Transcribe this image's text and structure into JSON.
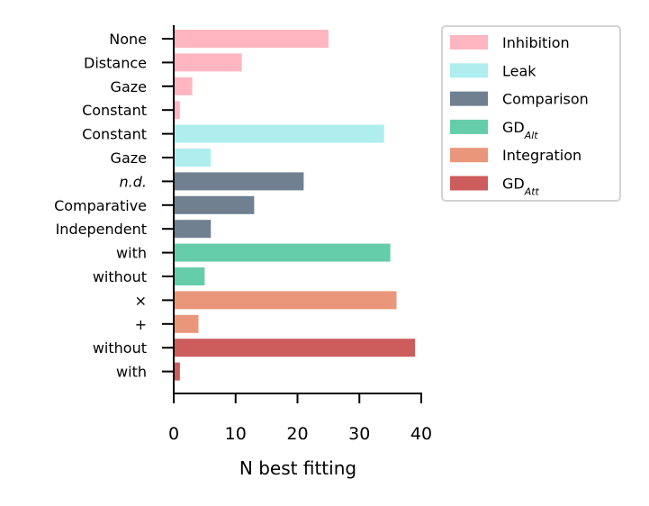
{
  "chart_data": {
    "type": "bar",
    "orientation": "horizontal",
    "categories": [
      "None",
      "Distance",
      "Gaze",
      "Constant",
      "Constant",
      "Gaze",
      "n.d.",
      "Comparative",
      "Independent",
      "with",
      "without",
      "×",
      "+",
      "without",
      "with"
    ],
    "category_italic": [
      false,
      false,
      false,
      false,
      false,
      false,
      true,
      false,
      false,
      false,
      false,
      false,
      false,
      false,
      false
    ],
    "values": [
      25,
      11,
      3,
      1,
      34,
      6,
      21,
      13,
      6,
      35,
      5,
      36,
      4,
      39,
      1
    ],
    "group": [
      0,
      0,
      0,
      0,
      1,
      1,
      2,
      2,
      2,
      3,
      3,
      4,
      4,
      5,
      5
    ],
    "xlabel": "N best fitting",
    "ylabel": "",
    "xlim": [
      0,
      40
    ],
    "xticks": [
      0,
      10,
      20,
      30,
      40
    ],
    "grid": false,
    "legend_position": "top-right, outside plot",
    "legend": [
      {
        "label": "Inhibition",
        "sub": "",
        "color": "#ffb6c1"
      },
      {
        "label": "Leak",
        "sub": "",
        "color": "#afeeee"
      },
      {
        "label": "Comparison",
        "sub": "",
        "color": "#708090"
      },
      {
        "label": "GD",
        "sub": "Alt",
        "color": "#66cdaa"
      },
      {
        "label": "Integration",
        "sub": "",
        "color": "#e9967a"
      },
      {
        "label": "GD",
        "sub": "Att",
        "color": "#cd5c5c"
      }
    ]
  }
}
